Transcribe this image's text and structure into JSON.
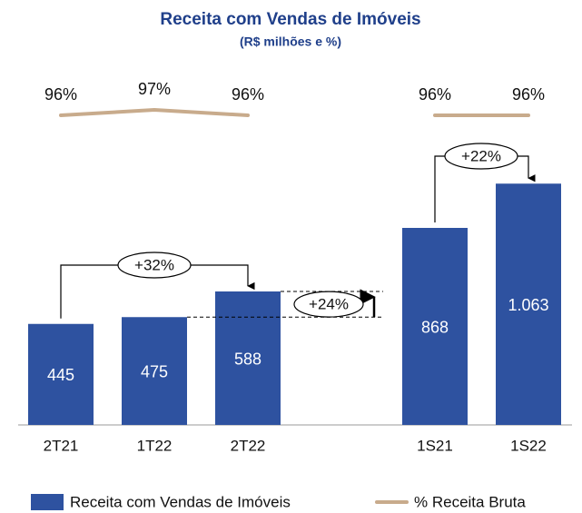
{
  "chart_data": {
    "type": "bar",
    "title": "Receita com Vendas de Imóveis",
    "subtitle": "(R$ milhões e %)",
    "categories": [
      "2T21",
      "1T22",
      "2T22",
      null,
      "1S21",
      "1S22"
    ],
    "ylim": [
      0,
      1300
    ],
    "y2lim": [
      80,
      100
    ],
    "series": [
      {
        "name": "Receita com Vendas de Imóveis",
        "color": "#2e52a0",
        "type": "bar",
        "values": [
          445,
          475,
          588,
          null,
          868,
          1063
        ],
        "value_labels": [
          "445",
          "475",
          "588",
          null,
          "868",
          "1.063"
        ]
      },
      {
        "name": "% Receita Bruta",
        "color": "#c8ab8c",
        "type": "line",
        "axis": "y2",
        "values": [
          96,
          97,
          96,
          null,
          96,
          96
        ],
        "value_labels": [
          "96%",
          "97%",
          "96%",
          null,
          "96%",
          "96%"
        ]
      }
    ],
    "annotations": [
      "+32%",
      "+24%",
      "+22%"
    ],
    "legend": "bottom"
  }
}
